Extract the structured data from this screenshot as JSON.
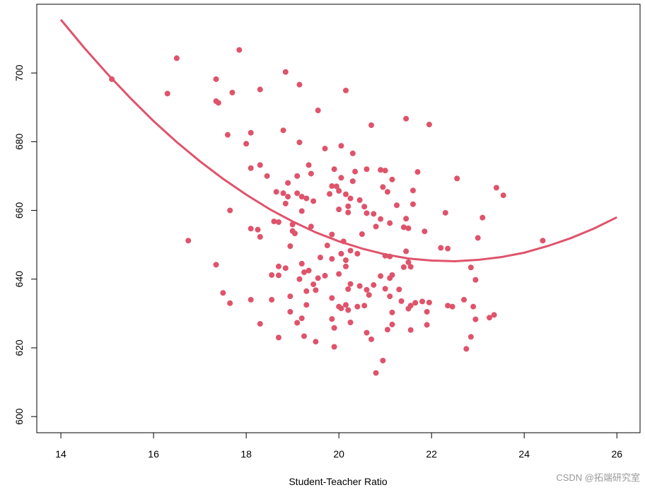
{
  "chart_data": {
    "type": "scatter",
    "xlabel": "Student-Teacher Ratio",
    "watermark": "CSDN @拓端研究室",
    "xlim": [
      13.48,
      26.5
    ],
    "ylim": [
      595.3,
      720
    ],
    "xticks": [
      14,
      16,
      18,
      20,
      22,
      24,
      26
    ],
    "yticks": [
      600,
      620,
      640,
      660,
      680,
      700
    ],
    "color": "#DF536B",
    "points": {
      "x": [
        15.1,
        16.3,
        16.5,
        17.85,
        17.35,
        17.7,
        17.35,
        17.4,
        18.3,
        18.85,
        19.15,
        20.15,
        19.55,
        21.45,
        21.95,
        20.7,
        17.6,
        18.1,
        18.8,
        18.0,
        19.15,
        20.05,
        19.7,
        20.3,
        18.1,
        18.3,
        18.45,
        18.9,
        19.1,
        19.35,
        19.4,
        19.9,
        20.05,
        20.3,
        20.35,
        20.6,
        20.9,
        21.0,
        21.15,
        21.7,
        22.55,
        23.4,
        23.55,
        17.65,
        16.75,
        18.1,
        18.25,
        18.3,
        18.65,
        18.8,
        18.9,
        19.1,
        19.2,
        19.3,
        19.45,
        18.85,
        18.6,
        18.7,
        19.2,
        19.0,
        19.0,
        19.05,
        19.4,
        18.95,
        19.8,
        19.85,
        19.95,
        20.0,
        20.15,
        20.25,
        20.45,
        20.55,
        20.0,
        20.2,
        20.2,
        20.6,
        20.75,
        20.9,
        20.95,
        21.05,
        21.25,
        21.6,
        21.6,
        21.4,
        21.45,
        21.5,
        21.85,
        22.3,
        23.1,
        23.0,
        22.2,
        22.35,
        24.4,
        19.85,
        20.5,
        20.8,
        21.1,
        20.1,
        19.75,
        19.85,
        20.05,
        20.15,
        20.25,
        20.4,
        20.15,
        19.6,
        21.0,
        21.1,
        21.45,
        21.5,
        21.4,
        21.55,
        17.35,
        18.7,
        18.85,
        19.2,
        19.35,
        19.25,
        19.15,
        18.7,
        19.45,
        19.55,
        19.5,
        19.3,
        19.7,
        20.0,
        20.25,
        20.2,
        20.45,
        20.6,
        20.75,
        20.9,
        21.0,
        21.1,
        21.15,
        21.3,
        21.1,
        20.15,
        20.0,
        20.05,
        20.2,
        20.4,
        20.55,
        20.65,
        19.85,
        18.55,
        18.95,
        18.95,
        19.3,
        19.2,
        19.1,
        18.3,
        17.5,
        17.65,
        18.1,
        21.5,
        21.55,
        21.8,
        21.95,
        21.15,
        21.35,
        21.65,
        21.9,
        22.35,
        22.45,
        22.7,
        22.9,
        23.25,
        23.35,
        22.95,
        22.95,
        22.85,
        21.9,
        21.15,
        21.05,
        21.55,
        20.25,
        19.9,
        19.85,
        19.25,
        19.5,
        18.7,
        19.9,
        20.6,
        20.7,
        20.95,
        20.8,
        22.75,
        22.85,
        18.55
      ],
      "y": [
        698.2,
        694,
        704.3,
        706.7,
        698.2,
        694.3,
        691.8,
        691.3,
        695.2,
        700.3,
        696.6,
        694.9,
        689.1,
        686.7,
        685.0,
        684.8,
        682,
        682.6,
        683.3,
        679.4,
        679.8,
        678.8,
        678,
        676.6,
        672.3,
        673.2,
        670,
        668,
        670,
        673.2,
        670.7,
        672,
        669.5,
        668.5,
        671.3,
        672,
        671.8,
        671.6,
        669,
        671.2,
        669.3,
        666.6,
        664.4,
        660,
        651.2,
        654.7,
        654.4,
        652.3,
        665.4,
        665,
        664,
        665,
        664,
        663.5,
        662.7,
        662,
        656.8,
        656.6,
        659.8,
        655.9,
        654,
        653.3,
        655.3,
        649.6,
        664.8,
        667.1,
        667,
        665.7,
        664.7,
        663.5,
        663,
        661.1,
        660.3,
        659.4,
        661.2,
        659.2,
        659,
        657.5,
        666.8,
        665.4,
        661.5,
        665.8,
        661.8,
        655.1,
        657.6,
        654.8,
        653.9,
        659.3,
        657.9,
        652,
        649.1,
        648.9,
        651.2,
        653,
        653.1,
        655.3,
        656.3,
        651,
        649.8,
        645.9,
        647.4,
        645.5,
        648.3,
        647.4,
        643.7,
        646.3,
        646.8,
        646.6,
        648.1,
        644.9,
        643.5,
        643.6,
        644.2,
        643.7,
        643.2,
        644.5,
        642.5,
        642,
        640,
        641.1,
        638.5,
        640.3,
        636.8,
        636.5,
        641,
        641.5,
        638.6,
        637.1,
        638,
        636.9,
        638.3,
        640.9,
        637.2,
        640.3,
        641.2,
        637,
        635,
        632.5,
        632,
        631.5,
        631,
        632,
        632.3,
        635.4,
        634.5,
        634,
        635,
        630.5,
        632.5,
        628.6,
        627.3,
        627,
        636,
        633,
        634,
        631.4,
        632.3,
        633.5,
        633.2,
        630.3,
        633.6,
        633.1,
        630.5,
        632.3,
        632,
        634,
        632,
        628.8,
        629.6,
        628.3,
        639.8,
        643.4,
        626.7,
        626.8,
        625.3,
        625.2,
        627.4,
        625.8,
        628.4,
        623.4,
        621.8,
        623,
        620.3,
        624.4,
        622.5,
        616.3,
        612.7,
        619.7,
        623.2,
        641.2
      ]
    },
    "curve": {
      "x": [
        14,
        14.5,
        15,
        15.5,
        16,
        16.5,
        17,
        17.5,
        18,
        18.5,
        19,
        19.5,
        20,
        20.5,
        21,
        21.5,
        22,
        22.5,
        23,
        23.5,
        24,
        24.5,
        25,
        25.5,
        26
      ],
      "y": [
        715.5,
        707.4,
        699.8,
        692.7,
        686.0,
        679.9,
        674.3,
        669.2,
        664.6,
        660.4,
        656.8,
        653.6,
        651,
        648.9,
        647.2,
        646.0,
        645.4,
        645.2,
        645.6,
        646.4,
        647.7,
        649.6,
        651.9,
        654.7,
        658
      ]
    }
  }
}
